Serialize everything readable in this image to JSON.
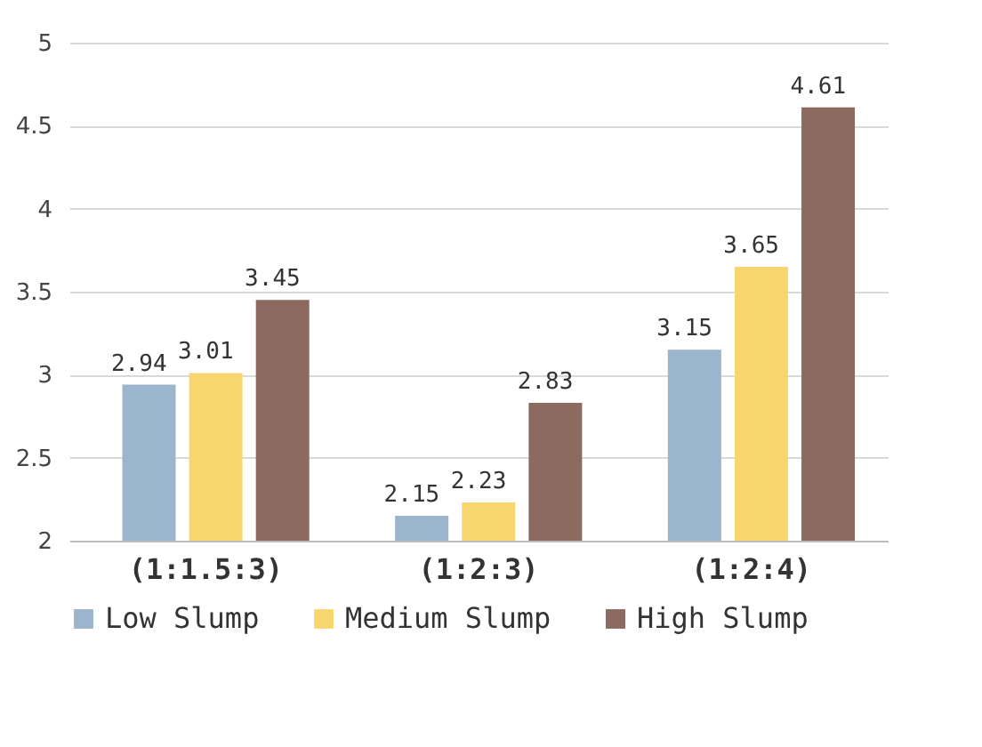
{
  "chart_data": {
    "type": "bar",
    "categories": [
      "(1:1.5:3)",
      "(1:2:3)",
      "(1:2:4)"
    ],
    "series": [
      {
        "name": "Low Slump",
        "color": "#9bb5cc",
        "values": [
          2.94,
          2.15,
          3.15
        ]
      },
      {
        "name": "Medium Slump",
        "color": "#f8d66f",
        "values": [
          3.01,
          2.23,
          3.65
        ]
      },
      {
        "name": "High Slump",
        "color": "#8c6a60",
        "values": [
          3.45,
          2.83,
          4.61
        ]
      }
    ],
    "ylim": [
      2,
      5
    ],
    "yticks": [
      2,
      2.5,
      3,
      3.5,
      4,
      4.5,
      5
    ],
    "grid": "y",
    "legend": "bottom",
    "data_labels": true
  }
}
